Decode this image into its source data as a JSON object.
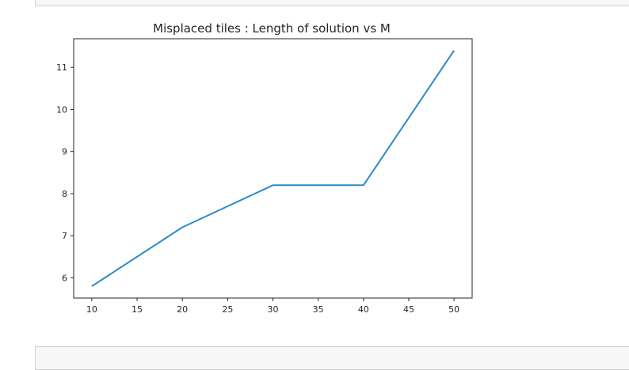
{
  "chart_data": {
    "type": "line",
    "title": "Misplaced tiles : Length of solution vs M",
    "xlabel": "",
    "ylabel": "",
    "x": [
      10,
      20,
      30,
      40,
      50
    ],
    "series": [
      {
        "values": [
          5.8,
          7.2,
          8.2,
          8.2,
          11.4
        ]
      }
    ],
    "xlim": [
      8,
      52
    ],
    "ylim": [
      5.52,
      11.68
    ],
    "xticks": [
      10,
      15,
      20,
      25,
      30,
      35,
      40,
      45,
      50
    ],
    "yticks": [
      6,
      7,
      8,
      9,
      10,
      11
    ],
    "grid": false,
    "legend": "none",
    "line_color": "#2a8cc7"
  }
}
